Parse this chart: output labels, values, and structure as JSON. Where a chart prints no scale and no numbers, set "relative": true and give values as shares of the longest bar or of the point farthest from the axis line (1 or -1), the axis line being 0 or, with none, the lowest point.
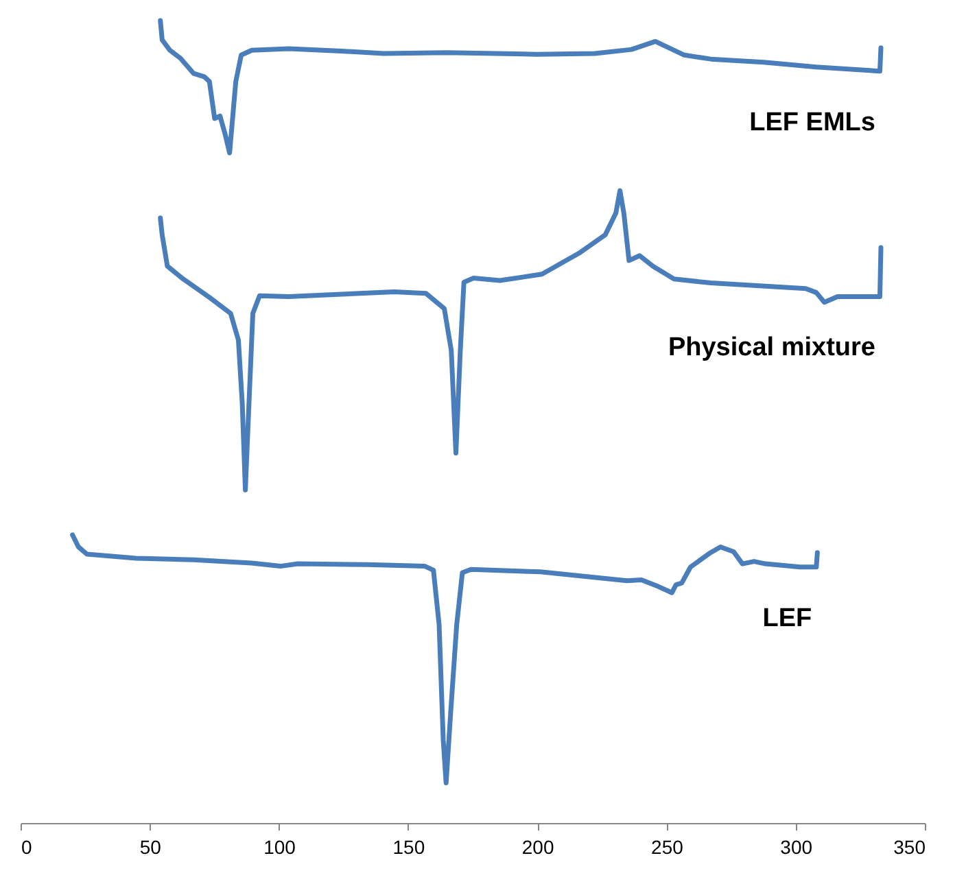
{
  "chart_data": {
    "type": "line",
    "relative": true,
    "xlim": [
      0,
      350
    ],
    "xticks": [
      0,
      50,
      100,
      150,
      200,
      250,
      300,
      350
    ],
    "grid": false,
    "legend": false,
    "marker": "none",
    "line_style": "solid",
    "series": [
      {
        "name": "LEF EMLs",
        "color": "#4a7ebb",
        "x": [
          54.1,
          54.8,
          57.8,
          61.9,
          67.0,
          71.1,
          73.1,
          75.1,
          77.2,
          79.2,
          80.9,
          83.3,
          85.4,
          89.5,
          103.8,
          124.2,
          140.5,
          165.1,
          199.8,
          222.3,
          236.5,
          245.7,
          256.9,
          267.2,
          287.6,
          308.0,
          332.6,
          333.0
        ],
        "values": [
          1.0,
          0.976,
          0.963,
          0.953,
          0.934,
          0.93,
          0.924,
          0.878,
          0.881,
          0.858,
          0.835,
          0.924,
          0.957,
          0.963,
          0.965,
          0.962,
          0.959,
          0.96,
          0.958,
          0.959,
          0.964,
          0.974,
          0.957,
          0.952,
          0.948,
          0.942,
          0.937,
          0.966
        ]
      },
      {
        "name": "Physical mixture",
        "color": "#4a7ebb",
        "x": [
          54.1,
          54.8,
          56.8,
          62.9,
          73.1,
          81.3,
          84.3,
          85.8,
          87.0,
          88.4,
          89.9,
          92.5,
          103.8,
          124.2,
          144.6,
          156.9,
          164.0,
          166.7,
          168.5,
          170.2,
          171.6,
          175.3,
          185.5,
          201.8,
          216.1,
          226.3,
          230.4,
          232.0,
          233.5,
          235.5,
          239.6,
          244.7,
          252.9,
          267.2,
          303.9,
          308.0,
          311.1,
          316.2,
          332.6,
          333.0
        ],
        "values": [
          0.754,
          0.733,
          0.694,
          0.678,
          0.655,
          0.635,
          0.602,
          0.523,
          0.415,
          0.523,
          0.635,
          0.657,
          0.656,
          0.659,
          0.662,
          0.66,
          0.641,
          0.589,
          0.461,
          0.589,
          0.674,
          0.679,
          0.676,
          0.684,
          0.71,
          0.733,
          0.76,
          0.788,
          0.76,
          0.701,
          0.707,
          0.694,
          0.678,
          0.673,
          0.666,
          0.661,
          0.649,
          0.656,
          0.656,
          0.717
        ]
      },
      {
        "name": "LEF",
        "color": "#4a7ebb",
        "x": [
          20.1,
          22.4,
          25.7,
          44.7,
          67.1,
          89.4,
          100.6,
          107.3,
          134.1,
          156.5,
          159.8,
          162.0,
          163.6,
          164.7,
          166.5,
          168.8,
          171.0,
          174.3,
          201.2,
          234.7,
          240.3,
          245.9,
          252.1,
          253.7,
          255.9,
          259.3,
          267.1,
          270.9,
          276.0,
          279.4,
          283.9,
          288.3,
          301.7,
          308.0,
          308.4
        ],
        "values": [
          0.359,
          0.344,
          0.335,
          0.33,
          0.328,
          0.324,
          0.32,
          0.323,
          0.322,
          0.32,
          0.315,
          0.247,
          0.103,
          0.05,
          0.139,
          0.247,
          0.312,
          0.316,
          0.313,
          0.302,
          0.303,
          0.296,
          0.287,
          0.297,
          0.299,
          0.319,
          0.337,
          0.344,
          0.338,
          0.323,
          0.326,
          0.323,
          0.319,
          0.319,
          0.337
        ]
      }
    ]
  }
}
